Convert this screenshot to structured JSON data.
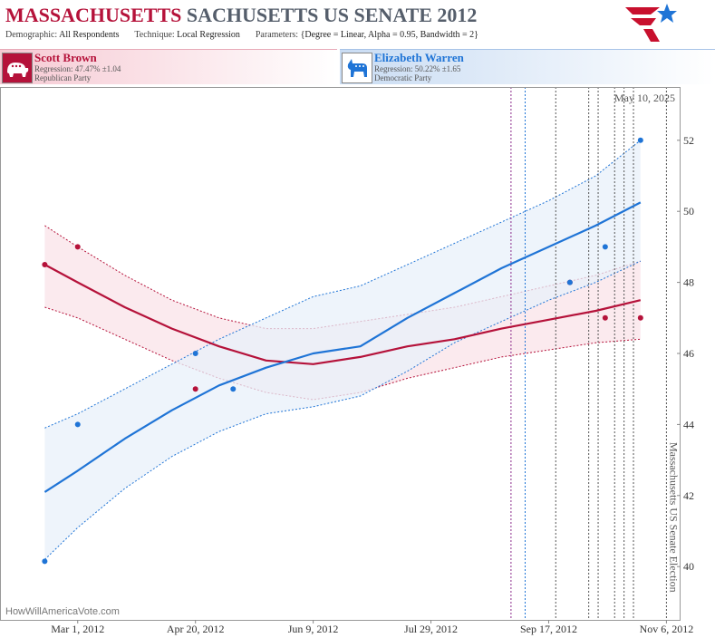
{
  "header": {
    "title_state": "MASSACHUSETTS",
    "title_race": "SACHUSETTS US SENATE",
    "title_year": "2012",
    "demographic_label": "Demographic:",
    "demographic_value": "All Respondents",
    "technique_label": "Technique:",
    "technique_value": "Local Regression",
    "parameters_label": "Parameters:",
    "parameters_value": "{Degree = Linear, Alpha = 0.95, Bandwidth = 2}",
    "logo_icon": "stars-stripes-logo-icon"
  },
  "candidates": [
    {
      "name": "Scott Brown",
      "regression": "Regression: 47.47% ±1.04",
      "party": "Republican Party",
      "icon": "elephant-icon",
      "color": "#b5123a"
    },
    {
      "name": "Elizabeth Warren",
      "regression": "Regression: 50.22% ±1.65",
      "party": "Democratic Party",
      "icon": "donkey-icon",
      "color": "#1f74d6"
    }
  ],
  "footer": {
    "watermark": "HowWillAmericaVote.com",
    "current_date": "May 10, 2025",
    "election_label": "Massachusetts US Senate Election"
  },
  "chart_data": {
    "type": "line",
    "title": "MASSACHUSETTS SACHUSETTS US SENATE 2012",
    "xlabel": "",
    "ylabel": "",
    "x_ticks": [
      "Mar 1, 2012",
      "Apr 20, 2012",
      "Jun 9, 2012",
      "Jul 29, 2012",
      "Sep 17, 2012",
      "Nov 6, 2012"
    ],
    "ylim": [
      38.5,
      53.5
    ],
    "yticks": [
      40,
      42,
      44,
      46,
      48,
      50,
      52
    ],
    "xlim": [
      "2012-01-28",
      "2012-11-12"
    ],
    "grid": false,
    "vertical_markers": [
      {
        "date": "2012-09-01",
        "style": "dotted",
        "color": "#8a2a8a"
      },
      {
        "date": "2012-09-07",
        "style": "dotted",
        "color": "#1f74d6"
      },
      {
        "date": "2012-09-20",
        "style": "dotted",
        "color": "#555555"
      },
      {
        "date": "2012-10-04",
        "style": "dotted",
        "color": "#555555"
      },
      {
        "date": "2012-10-08",
        "style": "dotted",
        "color": "#555555"
      },
      {
        "date": "2012-10-15",
        "style": "dotted",
        "color": "#555555"
      },
      {
        "date": "2012-10-19",
        "style": "dotted",
        "color": "#555555"
      },
      {
        "date": "2012-10-23",
        "style": "dotted",
        "color": "#555555"
      },
      {
        "date": "2012-11-06",
        "style": "dotted",
        "color": "#555555"
      }
    ],
    "series": [
      {
        "name": "Scott Brown",
        "color": "#b5123a",
        "band_color": "#f9e3e8",
        "points": [
          {
            "x": "2012-02-16",
            "y": 48.5
          },
          {
            "x": "2012-03-01",
            "y": 49.0
          },
          {
            "x": "2012-04-20",
            "y": 45.0
          },
          {
            "x": "2012-09-26",
            "y": 48.0
          },
          {
            "x": "2012-10-11",
            "y": 47.0
          },
          {
            "x": "2012-10-26",
            "y": 47.0
          }
        ],
        "fit": [
          {
            "x": "2012-02-16",
            "y": 48.5
          },
          {
            "x": "2012-03-01",
            "y": 48.0
          },
          {
            "x": "2012-03-21",
            "y": 47.3
          },
          {
            "x": "2012-04-10",
            "y": 46.7
          },
          {
            "x": "2012-04-30",
            "y": 46.2
          },
          {
            "x": "2012-05-20",
            "y": 45.8
          },
          {
            "x": "2012-06-09",
            "y": 45.7
          },
          {
            "x": "2012-06-29",
            "y": 45.9
          },
          {
            "x": "2012-07-19",
            "y": 46.2
          },
          {
            "x": "2012-08-08",
            "y": 46.4
          },
          {
            "x": "2012-08-28",
            "y": 46.7
          },
          {
            "x": "2012-09-17",
            "y": 46.95
          },
          {
            "x": "2012-10-07",
            "y": 47.2
          },
          {
            "x": "2012-10-26",
            "y": 47.5
          }
        ],
        "upper": [
          {
            "x": "2012-02-16",
            "y": 49.6
          },
          {
            "x": "2012-03-01",
            "y": 49.0
          },
          {
            "x": "2012-03-21",
            "y": 48.2
          },
          {
            "x": "2012-04-10",
            "y": 47.5
          },
          {
            "x": "2012-04-30",
            "y": 47.0
          },
          {
            "x": "2012-05-20",
            "y": 46.7
          },
          {
            "x": "2012-06-09",
            "y": 46.7
          },
          {
            "x": "2012-06-29",
            "y": 46.9
          },
          {
            "x": "2012-07-19",
            "y": 47.1
          },
          {
            "x": "2012-08-08",
            "y": 47.3
          },
          {
            "x": "2012-08-28",
            "y": 47.6
          },
          {
            "x": "2012-09-17",
            "y": 47.9
          },
          {
            "x": "2012-10-07",
            "y": 48.2
          },
          {
            "x": "2012-10-26",
            "y": 48.6
          }
        ],
        "lower": [
          {
            "x": "2012-02-16",
            "y": 47.3
          },
          {
            "x": "2012-03-01",
            "y": 47.0
          },
          {
            "x": "2012-03-21",
            "y": 46.4
          },
          {
            "x": "2012-04-10",
            "y": 45.8
          },
          {
            "x": "2012-04-30",
            "y": 45.3
          },
          {
            "x": "2012-05-20",
            "y": 44.9
          },
          {
            "x": "2012-06-09",
            "y": 44.7
          },
          {
            "x": "2012-06-29",
            "y": 44.9
          },
          {
            "x": "2012-07-19",
            "y": 45.3
          },
          {
            "x": "2012-08-08",
            "y": 45.6
          },
          {
            "x": "2012-08-28",
            "y": 45.9
          },
          {
            "x": "2012-09-17",
            "y": 46.1
          },
          {
            "x": "2012-10-07",
            "y": 46.3
          },
          {
            "x": "2012-10-26",
            "y": 46.4
          }
        ]
      },
      {
        "name": "Elizabeth Warren",
        "color": "#1f74d6",
        "band_color": "#e8f0fa",
        "points": [
          {
            "x": "2012-02-16",
            "y": 40.15
          },
          {
            "x": "2012-03-01",
            "y": 44.0
          },
          {
            "x": "2012-04-20",
            "y": 46.0
          },
          {
            "x": "2012-05-06",
            "y": 45.0
          },
          {
            "x": "2012-09-26",
            "y": 48.0
          },
          {
            "x": "2012-10-11",
            "y": 49.0
          },
          {
            "x": "2012-10-26",
            "y": 52.0
          }
        ],
        "fit": [
          {
            "x": "2012-02-16",
            "y": 42.1
          },
          {
            "x": "2012-03-01",
            "y": 42.7
          },
          {
            "x": "2012-03-21",
            "y": 43.6
          },
          {
            "x": "2012-04-10",
            "y": 44.4
          },
          {
            "x": "2012-04-30",
            "y": 45.1
          },
          {
            "x": "2012-05-20",
            "y": 45.6
          },
          {
            "x": "2012-06-09",
            "y": 46.0
          },
          {
            "x": "2012-06-29",
            "y": 46.2
          },
          {
            "x": "2012-07-19",
            "y": 47.0
          },
          {
            "x": "2012-08-08",
            "y": 47.7
          },
          {
            "x": "2012-08-28",
            "y": 48.4
          },
          {
            "x": "2012-09-17",
            "y": 49.0
          },
          {
            "x": "2012-10-07",
            "y": 49.6
          },
          {
            "x": "2012-10-26",
            "y": 50.25
          }
        ],
        "upper": [
          {
            "x": "2012-02-16",
            "y": 43.9
          },
          {
            "x": "2012-03-01",
            "y": 44.3
          },
          {
            "x": "2012-03-21",
            "y": 45.0
          },
          {
            "x": "2012-04-10",
            "y": 45.7
          },
          {
            "x": "2012-04-30",
            "y": 46.4
          },
          {
            "x": "2012-05-20",
            "y": 47.0
          },
          {
            "x": "2012-06-09",
            "y": 47.6
          },
          {
            "x": "2012-06-29",
            "y": 47.9
          },
          {
            "x": "2012-07-19",
            "y": 48.5
          },
          {
            "x": "2012-08-08",
            "y": 49.1
          },
          {
            "x": "2012-08-28",
            "y": 49.7
          },
          {
            "x": "2012-09-17",
            "y": 50.3
          },
          {
            "x": "2012-10-07",
            "y": 51.0
          },
          {
            "x": "2012-10-26",
            "y": 52.0
          }
        ],
        "lower": [
          {
            "x": "2012-02-16",
            "y": 40.2
          },
          {
            "x": "2012-03-01",
            "y": 41.1
          },
          {
            "x": "2012-03-21",
            "y": 42.2
          },
          {
            "x": "2012-04-10",
            "y": 43.1
          },
          {
            "x": "2012-04-30",
            "y": 43.8
          },
          {
            "x": "2012-05-20",
            "y": 44.3
          },
          {
            "x": "2012-06-09",
            "y": 44.5
          },
          {
            "x": "2012-06-29",
            "y": 44.8
          },
          {
            "x": "2012-07-19",
            "y": 45.5
          },
          {
            "x": "2012-08-08",
            "y": 46.3
          },
          {
            "x": "2012-08-28",
            "y": 46.9
          },
          {
            "x": "2012-09-17",
            "y": 47.5
          },
          {
            "x": "2012-10-07",
            "y": 48.0
          },
          {
            "x": "2012-10-26",
            "y": 48.6
          }
        ]
      }
    ]
  }
}
